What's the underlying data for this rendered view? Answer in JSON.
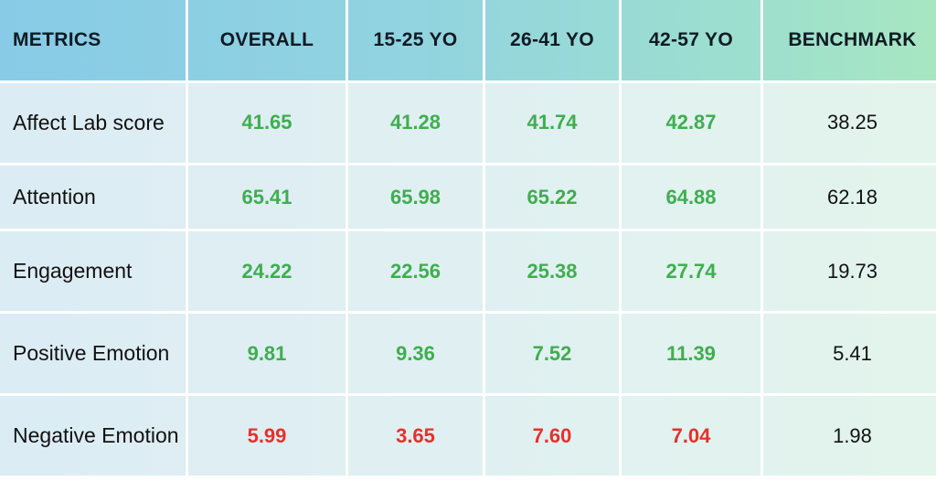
{
  "colors": {
    "positive": "#3fae4f",
    "negative": "#e8302a",
    "header_gradient_start": "#87cbe7",
    "header_gradient_end": "#a8e6c2"
  },
  "table": {
    "headers": [
      "METRICS",
      "OVERALL",
      "15-25 YO",
      "26-41 YO",
      "42-57 YO",
      "BENCHMARK"
    ],
    "rows": [
      {
        "metric": "Affect Lab score",
        "values": [
          "41.65",
          "41.28",
          "41.74",
          "42.87"
        ],
        "status": "above",
        "benchmark": "38.25"
      },
      {
        "metric": "Attention",
        "values": [
          "65.41",
          "65.98",
          "65.22",
          "64.88"
        ],
        "status": "above",
        "benchmark": "62.18"
      },
      {
        "metric": "Engagement",
        "values": [
          "24.22",
          "22.56",
          "25.38",
          "27.74"
        ],
        "status": "above",
        "benchmark": "19.73"
      },
      {
        "metric": "Positive Emotion",
        "values": [
          "9.81",
          "9.36",
          "7.52",
          "11.39"
        ],
        "status": "above",
        "benchmark": "5.41"
      },
      {
        "metric": "Negative Emotion",
        "values": [
          "5.99",
          "3.65",
          "7.60",
          "7.04"
        ],
        "status": "worse",
        "benchmark": "1.98"
      }
    ]
  }
}
